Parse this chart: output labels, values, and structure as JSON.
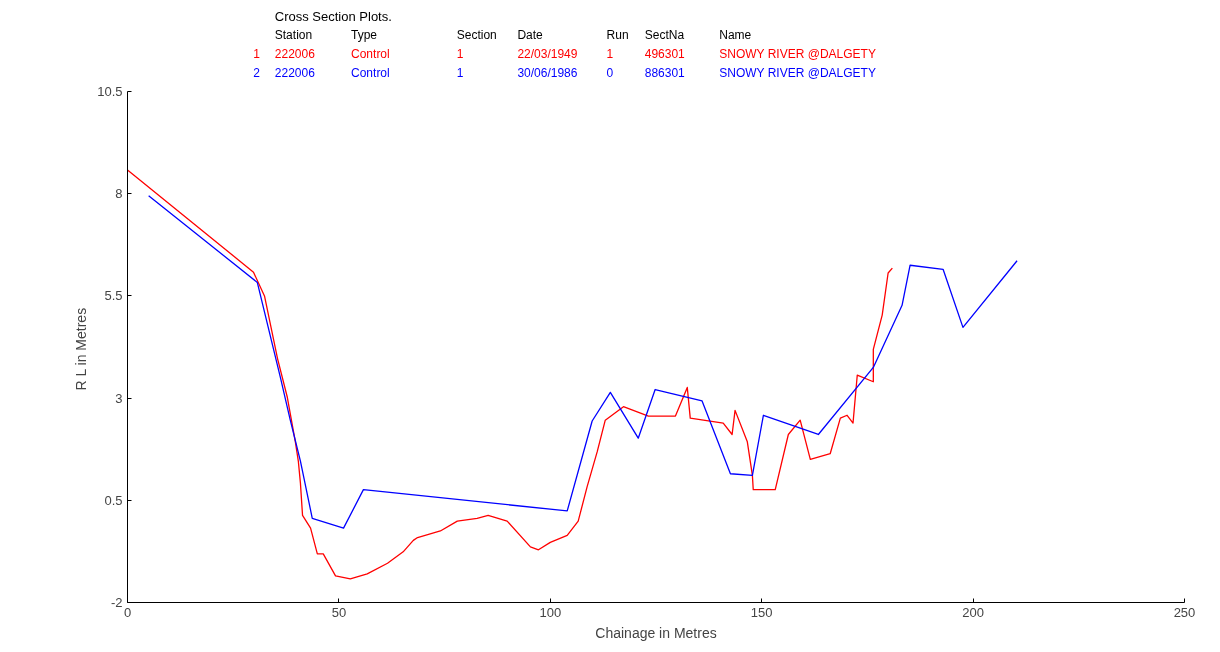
{
  "chart_data": {
    "type": "line",
    "title": "Cross Section Plots.",
    "legend_title": "Station  Type  Section  Date  Run  SectNa  Name",
    "xlabel": "Chainage in Metres",
    "ylabel": "R L  in Metres",
    "xlim": [
      0,
      250
    ],
    "xticks": [
      0,
      50,
      100,
      150,
      200,
      250
    ],
    "ylim": [
      -2,
      10.5
    ],
    "yticks": [
      -2,
      0.5,
      3,
      5.5,
      8,
      10.5
    ],
    "grid": false,
    "marker": "none",
    "line_style": "solid",
    "series": [
      {
        "name": "1  222006  Control  1  22/03/1949  1  496301  SNOWY RIVER @DALGETY",
        "color": "#ff0000",
        "x": [
          0,
          29.8,
          32.4,
          35.5,
          37.8,
          39.7,
          40.4,
          40.9,
          41.4,
          43.3,
          44.9,
          46.3,
          49.2,
          52.7,
          56.7,
          61.5,
          65.2,
          67.6,
          68.6,
          74.0,
          78.0,
          82.7,
          85.3,
          89.8,
          95.3,
          97.2,
          100,
          104,
          106.6,
          108.7,
          111.1,
          113.0,
          117.3,
          123.2,
          129.6,
          132.4,
          133.1,
          140.9,
          143.0,
          143.7,
          146.6,
          147.8,
          148.0,
          153.2,
          156.3,
          159.1,
          161.5,
          166.2,
          168.6,
          170.2,
          171.6,
          172.6,
          176.4,
          176.4,
          178.5,
          179.9,
          180.9
        ],
        "values": [
          8.58,
          6.08,
          5.5,
          3.96,
          3.02,
          1.93,
          1.46,
          0.92,
          0.13,
          -0.18,
          -0.81,
          -0.81,
          -1.35,
          -1.42,
          -1.3,
          -1.04,
          -0.76,
          -0.48,
          -0.41,
          -0.25,
          -0.01,
          0.06,
          0.13,
          -0.01,
          -0.64,
          -0.71,
          -0.53,
          -0.36,
          -0.01,
          0.83,
          1.69,
          2.46,
          2.79,
          2.56,
          2.56,
          3.26,
          2.51,
          2.39,
          2.11,
          2.7,
          1.93,
          1.11,
          0.76,
          0.76,
          2.11,
          2.46,
          1.5,
          1.64,
          2.51,
          2.58,
          2.39,
          3.56,
          3.4,
          4.19,
          5.03,
          6.06,
          6.18
        ]
      },
      {
        "name": "2  222006  Control  1  30/06/1986  0  886301  SNOWY RIVER @DALGETY",
        "color": "#0000ff",
        "x": [
          5.0,
          30.7,
          36.2,
          38.5,
          40.9,
          43.7,
          51.1,
          55.8,
          104.0,
          109.9,
          114.2,
          120.8,
          124.8,
          135.9,
          142.6,
          147.8,
          150.4,
          163.4,
          176.4,
          183.2,
          185.1,
          192.9,
          197.6,
          210.4
        ],
        "values": [
          7.95,
          5.83,
          3.49,
          2.46,
          1.46,
          0.06,
          -0.18,
          0.76,
          0.24,
          2.44,
          3.14,
          2.02,
          3.21,
          2.93,
          1.15,
          1.11,
          2.58,
          2.11,
          3.75,
          5.27,
          6.25,
          6.15,
          4.73,
          6.36
        ]
      }
    ]
  }
}
